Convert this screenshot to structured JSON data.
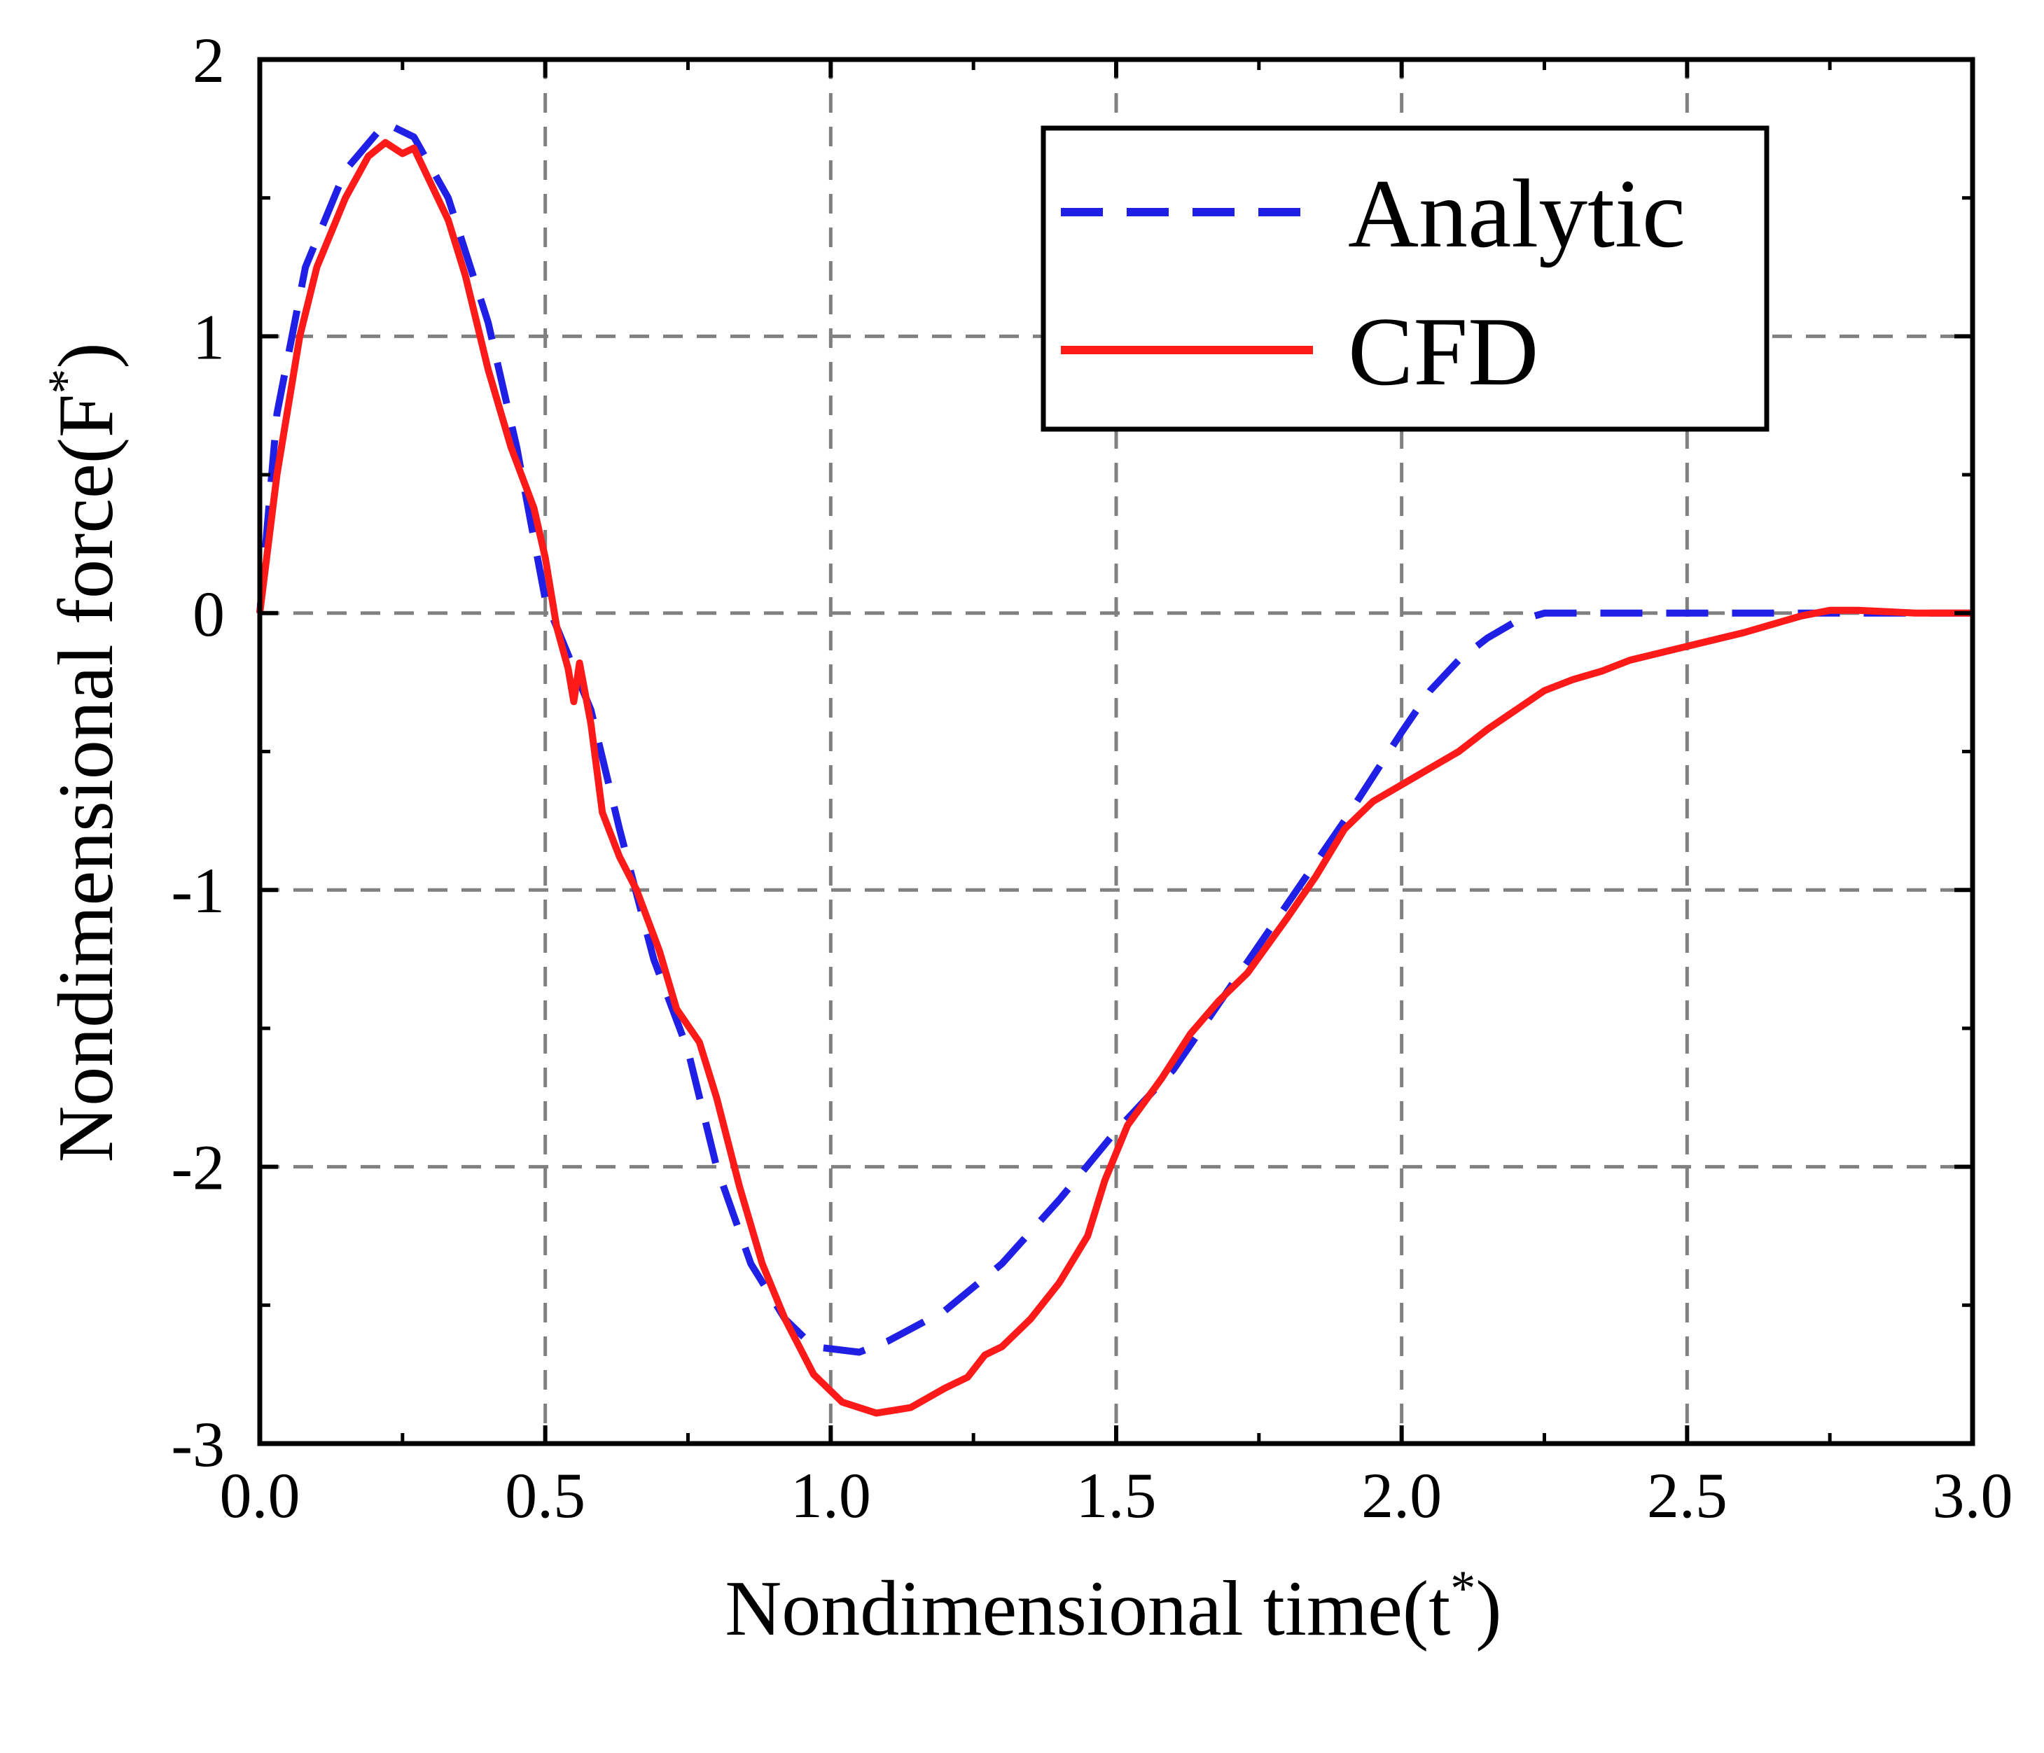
{
  "chart_data": {
    "type": "line",
    "title": "",
    "xlabel": "Nondimensional time(t",
    "xlabel_sup": "*",
    "xlabel_close": ")",
    "ylabel": "Nondimensional force(F",
    "ylabel_sup": "*",
    "ylabel_close": ")",
    "xlim": [
      0.0,
      3.0
    ],
    "ylim": [
      -3,
      2
    ],
    "xticks": [
      0.0,
      0.5,
      1.0,
      1.5,
      2.0,
      2.5,
      3.0
    ],
    "xtick_labels": [
      "0.0",
      "0.5",
      "1.0",
      "1.5",
      "2.0",
      "2.5",
      "3.0"
    ],
    "yticks": [
      -3,
      -2,
      -1,
      0,
      1,
      2
    ],
    "ytick_labels": [
      "-3",
      "-2",
      "-1",
      "0",
      "1",
      "2"
    ],
    "grid": true,
    "legend_position": "top-right",
    "series": [
      {
        "name": "Analytic",
        "style": "dashed",
        "color": "#1f1fe6",
        "points": [
          [
            0.0,
            0.0
          ],
          [
            0.03,
            0.72
          ],
          [
            0.08,
            1.25
          ],
          [
            0.15,
            1.6
          ],
          [
            0.22,
            1.77
          ],
          [
            0.27,
            1.72
          ],
          [
            0.33,
            1.5
          ],
          [
            0.4,
            1.05
          ],
          [
            0.45,
            0.6
          ],
          [
            0.5,
            0.05
          ],
          [
            0.53,
            -0.1
          ],
          [
            0.58,
            -0.35
          ],
          [
            0.63,
            -0.78
          ],
          [
            0.69,
            -1.25
          ],
          [
            0.75,
            -1.58
          ],
          [
            0.8,
            -2.0
          ],
          [
            0.86,
            -2.35
          ],
          [
            0.92,
            -2.55
          ],
          [
            0.97,
            -2.65
          ],
          [
            1.05,
            -2.67
          ],
          [
            1.1,
            -2.63
          ],
          [
            1.2,
            -2.52
          ],
          [
            1.3,
            -2.35
          ],
          [
            1.4,
            -2.12
          ],
          [
            1.5,
            -1.87
          ],
          [
            1.6,
            -1.65
          ],
          [
            1.7,
            -1.35
          ],
          [
            1.8,
            -1.05
          ],
          [
            1.9,
            -0.75
          ],
          [
            2.0,
            -0.43
          ],
          [
            2.05,
            -0.28
          ],
          [
            2.1,
            -0.17
          ],
          [
            2.15,
            -0.09
          ],
          [
            2.2,
            -0.03
          ],
          [
            2.25,
            0.0
          ],
          [
            2.5,
            0.0
          ],
          [
            2.75,
            0.0
          ],
          [
            3.0,
            0.0
          ]
        ]
      },
      {
        "name": "CFD",
        "style": "solid",
        "color": "#ff1a1a",
        "points": [
          [
            0.0,
            0.0
          ],
          [
            0.03,
            0.5
          ],
          [
            0.07,
            1.0
          ],
          [
            0.1,
            1.25
          ],
          [
            0.15,
            1.5
          ],
          [
            0.19,
            1.65
          ],
          [
            0.22,
            1.7
          ],
          [
            0.25,
            1.66
          ],
          [
            0.27,
            1.68
          ],
          [
            0.3,
            1.55
          ],
          [
            0.33,
            1.42
          ],
          [
            0.36,
            1.22
          ],
          [
            0.4,
            0.88
          ],
          [
            0.44,
            0.6
          ],
          [
            0.48,
            0.38
          ],
          [
            0.5,
            0.2
          ],
          [
            0.52,
            -0.05
          ],
          [
            0.54,
            -0.2
          ],
          [
            0.55,
            -0.32
          ],
          [
            0.56,
            -0.18
          ],
          [
            0.58,
            -0.4
          ],
          [
            0.6,
            -0.72
          ],
          [
            0.63,
            -0.88
          ],
          [
            0.66,
            -1.0
          ],
          [
            0.7,
            -1.22
          ],
          [
            0.73,
            -1.43
          ],
          [
            0.77,
            -1.55
          ],
          [
            0.8,
            -1.75
          ],
          [
            0.84,
            -2.07
          ],
          [
            0.88,
            -2.35
          ],
          [
            0.92,
            -2.55
          ],
          [
            0.97,
            -2.75
          ],
          [
            1.02,
            -2.85
          ],
          [
            1.08,
            -2.89
          ],
          [
            1.14,
            -2.87
          ],
          [
            1.2,
            -2.8
          ],
          [
            1.24,
            -2.76
          ],
          [
            1.27,
            -2.68
          ],
          [
            1.3,
            -2.65
          ],
          [
            1.35,
            -2.55
          ],
          [
            1.4,
            -2.42
          ],
          [
            1.45,
            -2.25
          ],
          [
            1.48,
            -2.05
          ],
          [
            1.52,
            -1.85
          ],
          [
            1.58,
            -1.68
          ],
          [
            1.63,
            -1.52
          ],
          [
            1.68,
            -1.4
          ],
          [
            1.73,
            -1.3
          ],
          [
            1.8,
            -1.1
          ],
          [
            1.85,
            -0.95
          ],
          [
            1.9,
            -0.78
          ],
          [
            1.95,
            -0.68
          ],
          [
            2.0,
            -0.62
          ],
          [
            2.05,
            -0.56
          ],
          [
            2.1,
            -0.5
          ],
          [
            2.15,
            -0.42
          ],
          [
            2.2,
            -0.35
          ],
          [
            2.25,
            -0.28
          ],
          [
            2.3,
            -0.24
          ],
          [
            2.35,
            -0.21
          ],
          [
            2.4,
            -0.17
          ],
          [
            2.5,
            -0.12
          ],
          [
            2.6,
            -0.07
          ],
          [
            2.7,
            -0.01
          ],
          [
            2.75,
            0.01
          ],
          [
            2.8,
            0.01
          ],
          [
            2.9,
            0.0
          ],
          [
            3.0,
            0.0
          ]
        ]
      }
    ]
  }
}
